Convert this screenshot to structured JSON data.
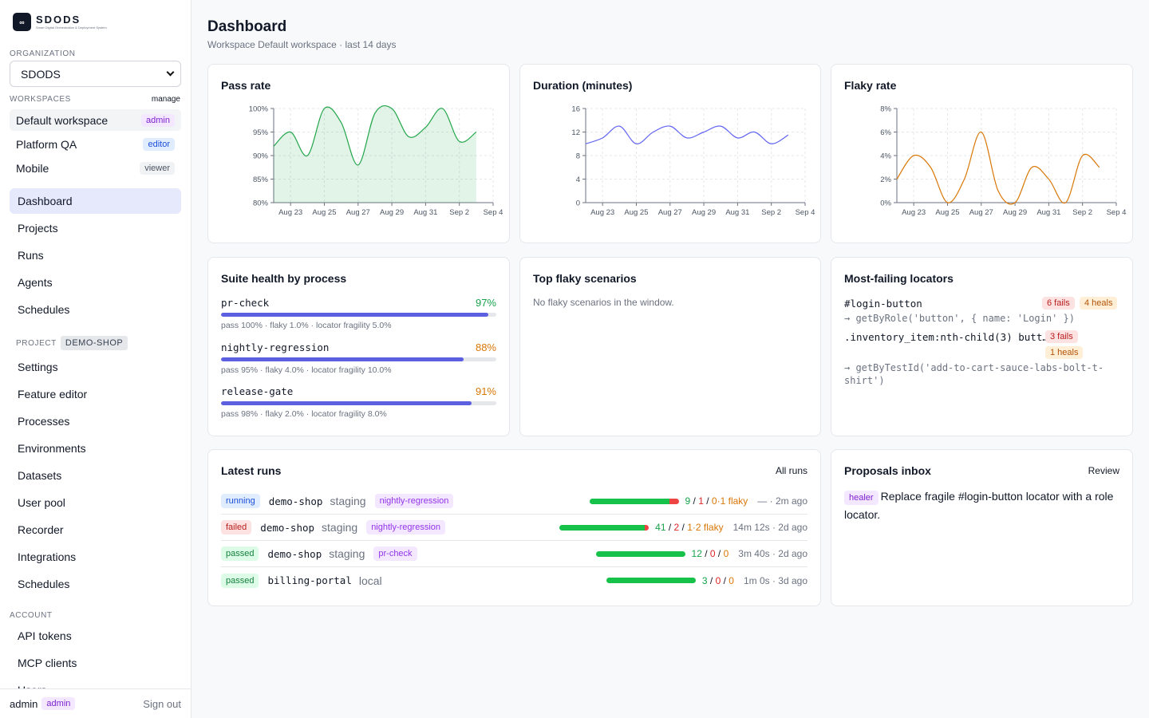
{
  "brand": {
    "logo_text": "∞",
    "name": "SDODS",
    "tagline": "Smart Digital Orchestration & Deployment System"
  },
  "sidebar": {
    "org_label": "ORGANIZATION",
    "org_value": "SDODS",
    "workspaces_label": "WORKSPACES",
    "manage": "manage",
    "workspaces": [
      {
        "name": "Default workspace",
        "role": "admin"
      },
      {
        "name": "Platform QA",
        "role": "editor"
      },
      {
        "name": "Mobile",
        "role": "viewer"
      }
    ],
    "main_nav": [
      "Dashboard",
      "Projects",
      "Runs",
      "Agents",
      "Schedules"
    ],
    "project_label": "PROJECT",
    "project_name": "DEMO-SHOP",
    "project_nav": [
      "Settings",
      "Feature editor",
      "Processes",
      "Environments",
      "Datasets",
      "User pool",
      "Recorder",
      "Integrations",
      "Schedules"
    ],
    "account_label": "ACCOUNT",
    "account_nav": [
      "API tokens",
      "MCP clients",
      "Users"
    ],
    "footer": {
      "user": "admin",
      "role": "admin",
      "signout": "Sign out"
    }
  },
  "header": {
    "title": "Dashboard",
    "subtitle": "Workspace Default workspace · last 14 days"
  },
  "charts": {
    "x_labels": [
      "Aug 23",
      "Aug 25",
      "Aug 27",
      "Aug 29",
      "Aug 31",
      "Sep 2",
      "Sep 4"
    ],
    "pass_title": "Pass rate",
    "duration_title": "Duration (minutes)",
    "flaky_title": "Flaky rate"
  },
  "chart_data": [
    {
      "type": "area",
      "title": "Pass rate",
      "x": [
        "Aug 22",
        "Aug 23",
        "Aug 24",
        "Aug 25",
        "Aug 26",
        "Aug 27",
        "Aug 28",
        "Aug 29",
        "Aug 30",
        "Aug 31",
        "Sep 1",
        "Sep 2",
        "Sep 3",
        "Sep 4"
      ],
      "values": [
        92,
        95,
        90,
        100,
        97,
        88,
        99,
        100,
        94,
        96,
        100,
        93,
        95,
        null
      ],
      "ylim": [
        80,
        100
      ],
      "y_ticks": [
        "80%",
        "85%",
        "90%",
        "95%",
        "100%"
      ],
      "grid": true,
      "color": "#22a64a"
    },
    {
      "type": "line",
      "title": "Duration (minutes)",
      "x": [
        "Aug 22",
        "Aug 23",
        "Aug 24",
        "Aug 25",
        "Aug 26",
        "Aug 27",
        "Aug 28",
        "Aug 29",
        "Aug 30",
        "Aug 31",
        "Sep 1",
        "Sep 2",
        "Sep 3",
        "Sep 4"
      ],
      "values": [
        10,
        11,
        13,
        10,
        12,
        13,
        11,
        12,
        13,
        11,
        12,
        10,
        11.5,
        null
      ],
      "ylim": [
        0,
        16
      ],
      "y_ticks": [
        "0",
        "4",
        "8",
        "12",
        "16"
      ],
      "grid": true,
      "color": "#6366f1"
    },
    {
      "type": "line",
      "title": "Flaky rate",
      "x": [
        "Aug 22",
        "Aug 23",
        "Aug 24",
        "Aug 25",
        "Aug 26",
        "Aug 27",
        "Aug 28",
        "Aug 29",
        "Aug 30",
        "Aug 31",
        "Sep 1",
        "Sep 2",
        "Sep 3",
        "Sep 4"
      ],
      "values": [
        2,
        4,
        3,
        0,
        2,
        6,
        1,
        0,
        3,
        2,
        0,
        4,
        3,
        null
      ],
      "ylim": [
        0,
        8
      ],
      "y_ticks": [
        "0%",
        "2%",
        "4%",
        "6%",
        "8%"
      ],
      "grid": true,
      "color": "#d97706"
    }
  ],
  "suite_health": {
    "title": "Suite health by process",
    "items": [
      {
        "name": "pr-check",
        "pct": "97%",
        "fill": 0.97,
        "color": "#16a34a",
        "meta": "pass 100% · flaky 1.0% · locator fragility 5.0%"
      },
      {
        "name": "nightly-regression",
        "pct": "88%",
        "fill": 0.88,
        "color": "#d97706",
        "meta": "pass 95% · flaky 4.0% · locator fragility 10.0%"
      },
      {
        "name": "release-gate",
        "pct": "91%",
        "fill": 0.91,
        "color": "#d97706",
        "meta": "pass 98% · flaky 2.0% · locator fragility 8.0%"
      }
    ]
  },
  "top_flaky": {
    "title": "Top flaky scenarios",
    "empty": "No flaky scenarios in the window."
  },
  "locators": {
    "title": "Most-failing locators",
    "items": [
      {
        "name": "#login-button",
        "fails": "6 fails",
        "heals": "4 heals",
        "alt": "→ getByRole('button', { name: 'Login' })"
      },
      {
        "name": ".inventory_item:nth-child(3) butt…",
        "fails": "3 fails",
        "heals": "1 heals",
        "alt": "→ getByTestId('add-to-cart-sauce-labs-bolt-t-shirt')"
      }
    ]
  },
  "runs": {
    "title": "Latest runs",
    "link": "All runs",
    "rows": [
      {
        "status": "running",
        "project": "demo-shop",
        "env": "staging",
        "process": "nightly-regression",
        "pass_frac": 0.9,
        "fail_frac": 0.1,
        "pass": "9",
        "fail": "1",
        "skip": "0",
        "flaky": "·1 flaky",
        "timing": "— · 2m ago"
      },
      {
        "status": "failed",
        "project": "demo-shop",
        "env": "staging",
        "process": "nightly-regression",
        "pass_frac": 0.95,
        "fail_frac": 0.05,
        "pass": "41",
        "fail": "2",
        "skip": "1",
        "flaky": "·2 flaky",
        "timing": "14m 12s · 2d ago"
      },
      {
        "status": "passed",
        "project": "demo-shop",
        "env": "staging",
        "process": "pr-check",
        "pass_frac": 1,
        "fail_frac": 0,
        "pass": "12",
        "fail": "0",
        "skip": "0",
        "flaky": "",
        "timing": "3m 40s · 2d ago"
      },
      {
        "status": "passed",
        "project": "billing-portal",
        "env": "local",
        "process": "",
        "pass_frac": 1,
        "fail_frac": 0,
        "pass": "3",
        "fail": "0",
        "skip": "0",
        "flaky": "",
        "timing": "1m 0s · 3d ago"
      }
    ]
  },
  "proposals": {
    "title": "Proposals inbox",
    "link": "Review",
    "items": [
      {
        "badge": "healer",
        "text": "Replace fragile #login-button locator with a role locator."
      }
    ]
  }
}
